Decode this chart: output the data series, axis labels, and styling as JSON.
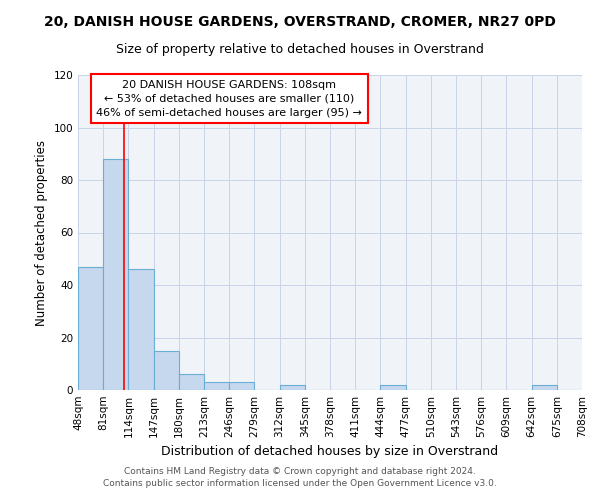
{
  "title": "20, DANISH HOUSE GARDENS, OVERSTRAND, CROMER, NR27 0PD",
  "subtitle": "Size of property relative to detached houses in Overstrand",
  "xlabel": "Distribution of detached houses by size in Overstrand",
  "ylabel": "Number of detached properties",
  "bin_edges": [
    48,
    81,
    114,
    147,
    180,
    213,
    246,
    279,
    312,
    345,
    378,
    411,
    444,
    477,
    510,
    543,
    576,
    609,
    642,
    675,
    708
  ],
  "bar_heights": [
    47,
    88,
    46,
    15,
    6,
    3,
    3,
    0,
    2,
    0,
    0,
    0,
    2,
    0,
    0,
    0,
    0,
    0,
    2,
    0
  ],
  "bar_color": "#c5d8ed",
  "bar_edgecolor": "#6aaed6",
  "bar_linewidth": 0.8,
  "vline_x": 108,
  "vline_color": "red",
  "vline_linewidth": 1.2,
  "ylim": [
    0,
    120
  ],
  "yticks": [
    0,
    20,
    40,
    60,
    80,
    100,
    120
  ],
  "annotation_text": "20 DANISH HOUSE GARDENS: 108sqm\n← 53% of detached houses are smaller (110)\n46% of semi-detached houses are larger (95) →",
  "annotation_fontsize": 8.0,
  "annotation_box_edgecolor": "red",
  "annotation_box_facecolor": "white",
  "footer_line1": "Contains HM Land Registry data © Crown copyright and database right 2024.",
  "footer_line2": "Contains public sector information licensed under the Open Government Licence v3.0.",
  "title_fontsize": 10,
  "subtitle_fontsize": 9,
  "xlabel_fontsize": 9,
  "ylabel_fontsize": 8.5,
  "tick_fontsize": 7.5,
  "footer_fontsize": 6.5,
  "background_color": "#f0f4f8",
  "grid_color": "#c8d4e8",
  "figsize": [
    6.0,
    5.0
  ],
  "dpi": 100
}
